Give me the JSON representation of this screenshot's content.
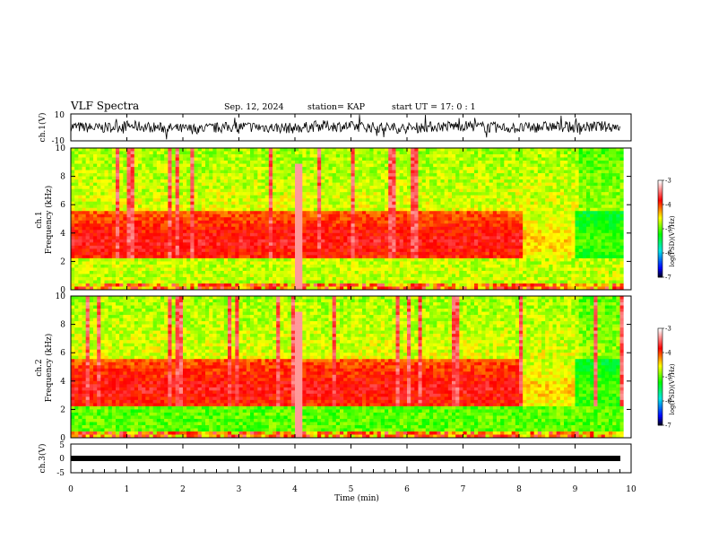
{
  "header": {
    "title": "VLF Spectra",
    "date": "Sep. 12, 2024",
    "station": "station= KAP",
    "start": "start  UT  =   17: 0  : 1"
  },
  "chart_data": [
    {
      "type": "line",
      "id": "ch1-waveform",
      "ylabel": "ch.1(V)",
      "ylim": [
        -10,
        10
      ],
      "yticks": [
        "10",
        "-10"
      ],
      "xlim": [
        0,
        10
      ],
      "series": [
        {
          "x": [
            0,
            0.5,
            1,
            1.5,
            2,
            2.5,
            3,
            3.5,
            4,
            4.5,
            5,
            5.5,
            6,
            6.5,
            7,
            7.5,
            8,
            8.5,
            9,
            9.5,
            9.8
          ],
          "values": [
            1,
            -1,
            2,
            0,
            -2,
            -1,
            1,
            0,
            -1,
            2,
            1,
            0,
            -1,
            1,
            2,
            0,
            -1,
            1,
            0,
            1,
            1
          ]
        }
      ]
    },
    {
      "type": "heatmap",
      "id": "ch1-spectrogram",
      "ylabel": "ch.1\nFrequency (kHz)",
      "ylabel_lines": [
        "ch.1",
        "Frequency (kHz)"
      ],
      "ylim": [
        0,
        10
      ],
      "yticks": [
        "0",
        "2",
        "4",
        "6",
        "8",
        "10"
      ],
      "xlim": [
        0,
        10
      ],
      "colorbar": {
        "label": "log(PSD)(V²/Hz)",
        "range": [
          -7,
          -3
        ],
        "ticks": [
          "-3",
          "-4",
          "-5",
          "-6",
          "-7"
        ]
      }
    },
    {
      "type": "heatmap",
      "id": "ch2-spectrogram",
      "ylabel": "ch.2\nFrequency (kHz)",
      "ylabel_lines": [
        "ch.2",
        "Frequency (kHz)"
      ],
      "ylim": [
        0,
        10
      ],
      "yticks": [
        "0",
        "2",
        "4",
        "6",
        "8",
        "10"
      ],
      "xlim": [
        0,
        10
      ],
      "colorbar": {
        "label": "log(PSD)(V²/Hz)",
        "range": [
          -7,
          -3
        ],
        "ticks": [
          "-3",
          "-4",
          "-5",
          "-6",
          "-7"
        ]
      }
    },
    {
      "type": "line",
      "id": "ch3-waveform",
      "ylabel": "ch.3(V)",
      "ylim": [
        -5,
        5
      ],
      "yticks": [
        "5",
        "0",
        "-5"
      ],
      "xlim": [
        0,
        10
      ],
      "xlabel": "Time  (min)",
      "xticks": [
        "0",
        "1",
        "2",
        "3",
        "4",
        "5",
        "6",
        "7",
        "8",
        "9",
        "10"
      ],
      "series": [
        {
          "x": [
            0,
            9.8
          ],
          "values": [
            0,
            0
          ]
        }
      ]
    }
  ],
  "colors": {
    "palette": [
      "#000000",
      "#0000ff",
      "#00e5e5",
      "#00ff00",
      "#ffff00",
      "#ff0000",
      "#ffffff"
    ]
  }
}
